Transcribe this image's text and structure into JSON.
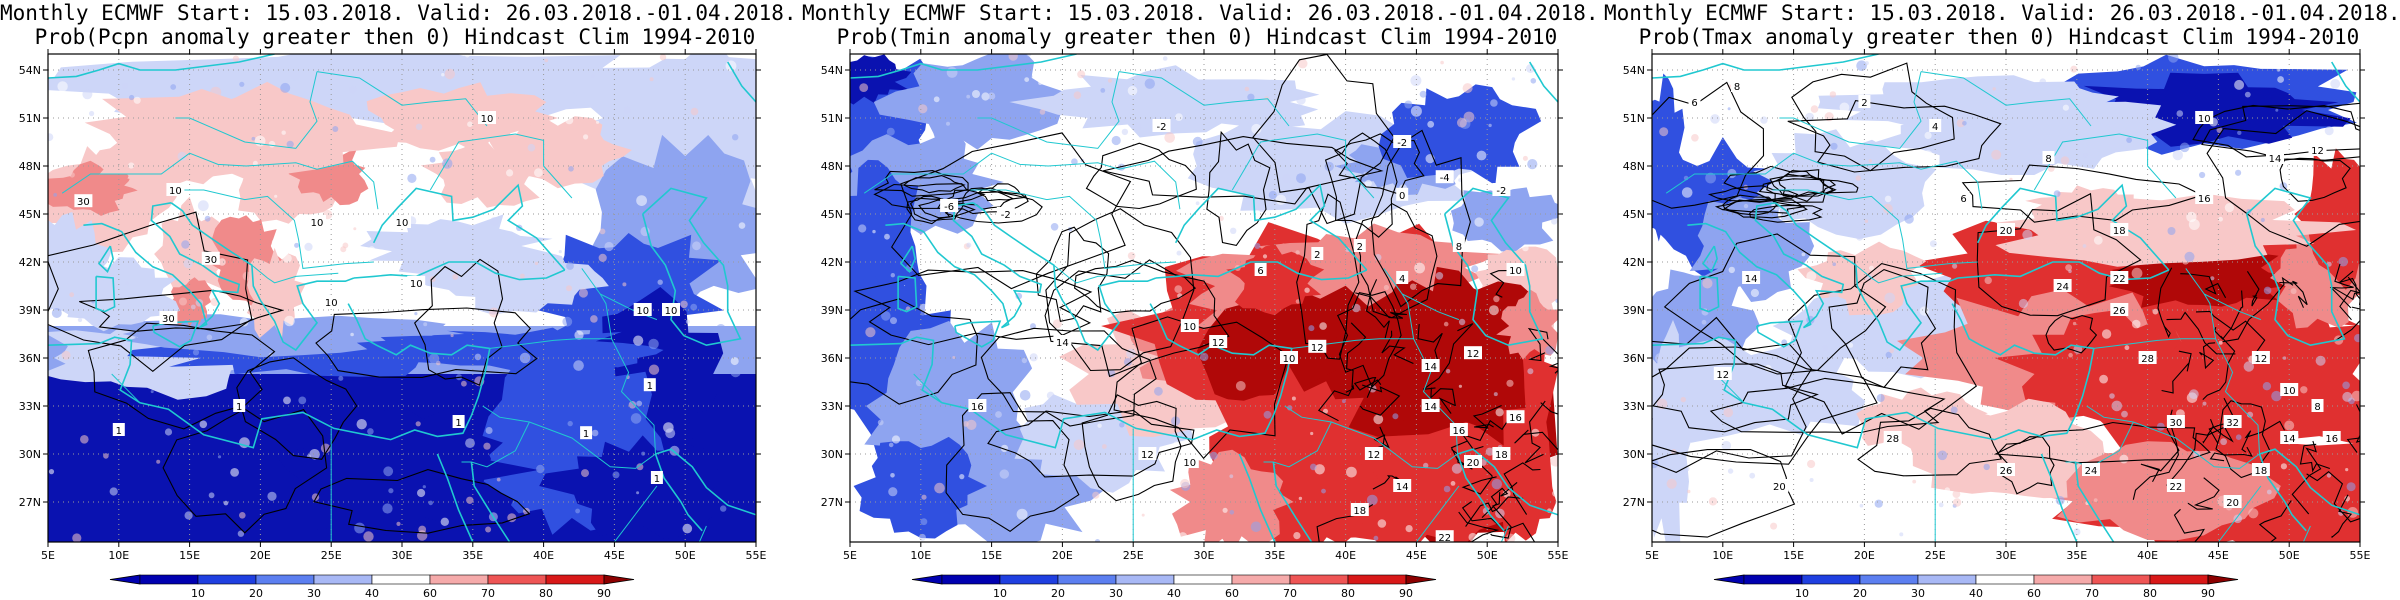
{
  "panels": [
    {
      "title_line1": "Monthly ECMWF Start: 15.03.2018. Valid: 26.03.2018.-01.04.2018.",
      "title_line2": "Prob(Pcpn anomaly greater then 0) Hindcast Clim 1994-2010",
      "variable": "precipitation",
      "contour_labels": [
        "30",
        "10",
        "10",
        "10",
        "10",
        "30",
        "10",
        "10",
        "30",
        "1",
        "1",
        "1",
        "1",
        "1",
        "10",
        "10",
        "1"
      ]
    },
    {
      "title_line1": "Monthly ECMWF Start: 15.03.2018. Valid: 26.03.2018.-01.04.2018.",
      "title_line2": "Prob(Tmin anomaly greater then 0) Hindcast Clim 1994-2010",
      "variable": "tmin",
      "contour_labels": [
        "-4",
        "-2",
        "0",
        "-2",
        "-6",
        "-2",
        "2",
        "6",
        "10",
        "12",
        "14",
        "16",
        "10",
        "12",
        "14",
        "16",
        "12",
        "14",
        "18",
        "10",
        "12",
        "8",
        "4",
        "2",
        "10",
        "12",
        "14",
        "16",
        "18",
        "20",
        "22",
        "-2"
      ]
    },
    {
      "title_line1": "Monthly ECMWF Start: 15.03.2018. Valid: 26.03.2018.-01.04.2018.",
      "title_line2": "Prob(Tmax anomaly greater then 0) Hindcast Clim 1994-2010",
      "variable": "tmax",
      "contour_labels": [
        "6",
        "8",
        "2",
        "4",
        "6",
        "8",
        "10",
        "12",
        "14",
        "16",
        "18",
        "20",
        "22",
        "24",
        "26",
        "28",
        "30",
        "32",
        "12",
        "10",
        "8",
        "16",
        "14",
        "18",
        "20",
        "22",
        "24",
        "26",
        "28",
        "14",
        "12",
        "20"
      ]
    }
  ],
  "axes": {
    "lat_labels": [
      "54N",
      "51N",
      "48N",
      "45N",
      "42N",
      "39N",
      "36N",
      "33N",
      "30N",
      "27N"
    ],
    "lon_labels": [
      "5E",
      "10E",
      "15E",
      "20E",
      "25E",
      "30E",
      "35E",
      "40E",
      "45E",
      "50E",
      "55E"
    ]
  },
  "colorbar": {
    "labels": [
      "10",
      "20",
      "30",
      "40",
      "60",
      "70",
      "80",
      "90"
    ],
    "colors": [
      "#0000b0",
      "#1f3fe0",
      "#5c7ff0",
      "#a8b8f5",
      "#ffffff",
      "#f5aaaa",
      "#ee5555",
      "#d81818",
      "#8c0000"
    ]
  },
  "palette": {
    "deep_blue": "#0a12b0",
    "blue": "#3050e0",
    "light_blue": "#8ea4f0",
    "pale_blue": "#cdd6f8",
    "white": "#ffffff",
    "pale_red": "#f8c8c8",
    "light_red": "#f08a8a",
    "red": "#e03030",
    "dark_red": "#b00808",
    "coast": "#20c8d0",
    "contour": "#000000"
  }
}
